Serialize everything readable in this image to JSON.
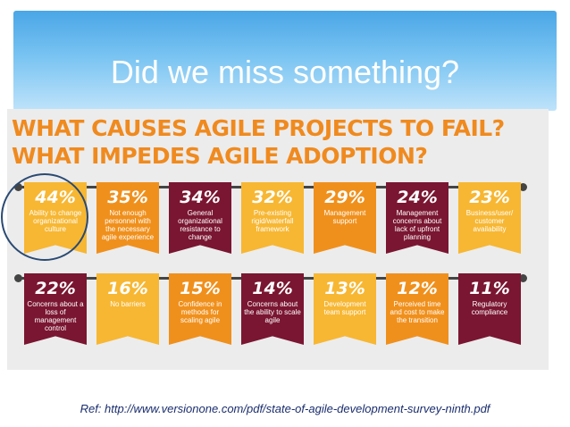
{
  "slide": {
    "title": "Did we miss something?",
    "reference": "Ref: http://www.versionone.com/pdf/state-of-agile-development-survey-ninth.pdf",
    "colors": {
      "header_blue": "#5ab0ec",
      "headline_orange": "#f08a1e",
      "yellow": "#f7b733",
      "orange": "#f0901c",
      "maroon": "#7a1631",
      "reference_text": "#1a2e6e"
    }
  },
  "chart_data": {
    "type": "bar",
    "title_lines": [
      "WHAT CAUSES AGILE PROJECTS TO FAIL?",
      "WHAT IMPEDES AGILE ADOPTION?"
    ],
    "unit": "%",
    "highlighted_category": "Ability to change organizational culture",
    "rows": [
      [
        {
          "value": "44%",
          "label": "Ability to change organizational culture",
          "color": "#f7b733"
        },
        {
          "value": "35%",
          "label": "Not enough personnel with the necessary agile experience",
          "color": "#f0901c"
        },
        {
          "value": "34%",
          "label": "General organizational resistance to change",
          "color": "#7a1631"
        },
        {
          "value": "32%",
          "label": "Pre-existing rigid/waterfall framework",
          "color": "#f7b733"
        },
        {
          "value": "29%",
          "label": "Management support",
          "color": "#f0901c"
        },
        {
          "value": "24%",
          "label": "Management concerns about lack of upfront planning",
          "color": "#7a1631"
        },
        {
          "value": "23%",
          "label": "Business/user/ customer availability",
          "color": "#f7b733"
        }
      ],
      [
        {
          "value": "22%",
          "label": "Concerns about a loss of management control",
          "color": "#7a1631"
        },
        {
          "value": "16%",
          "label": "No barriers",
          "color": "#f7b733"
        },
        {
          "value": "15%",
          "label": "Confidence in methods for scaling agile",
          "color": "#f0901c"
        },
        {
          "value": "14%",
          "label": "Concerns about the ability to scale agile",
          "color": "#7a1631"
        },
        {
          "value": "13%",
          "label": "Development team support",
          "color": "#f7b733"
        },
        {
          "value": "12%",
          "label": "Perceived time and cost to make the transition",
          "color": "#f0901c"
        },
        {
          "value": "11%",
          "label": "Regulatory compliance",
          "color": "#7a1631"
        }
      ]
    ]
  }
}
